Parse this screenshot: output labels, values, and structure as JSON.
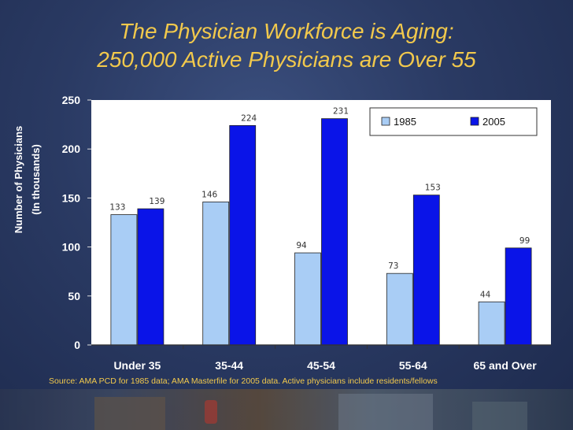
{
  "title": {
    "line1": "The Physician Workforce is Aging:",
    "line2": "250,000 Active Physicians are Over 55"
  },
  "source_note": "Source:  AMA PCD for 1985 data; AMA Masterfile  for 2005 data. Active physicians include residents/fellows",
  "chart_data": {
    "type": "bar",
    "categories": [
      "Under 35",
      "35-44",
      "45-54",
      "55-64",
      "65 and Over"
    ],
    "series": [
      {
        "name": "1985",
        "values": [
          133,
          146,
          94,
          73,
          44
        ],
        "color": "#a9cdf5"
      },
      {
        "name": "2005",
        "values": [
          139,
          224,
          231,
          153,
          99
        ],
        "color": "#0a14e8"
      }
    ],
    "ylabel_line1": "Number of Physicians",
    "ylabel_line2": "(In thousands)",
    "ylim": [
      0,
      250
    ],
    "yticks": [
      0,
      50,
      100,
      150,
      200,
      250
    ],
    "legend_position": "top-right",
    "grid": false,
    "plot_background": "#ffffff"
  },
  "colors": {
    "title": "#f2c94c",
    "axis_text": "#ffffff",
    "data_label": "#333333"
  }
}
